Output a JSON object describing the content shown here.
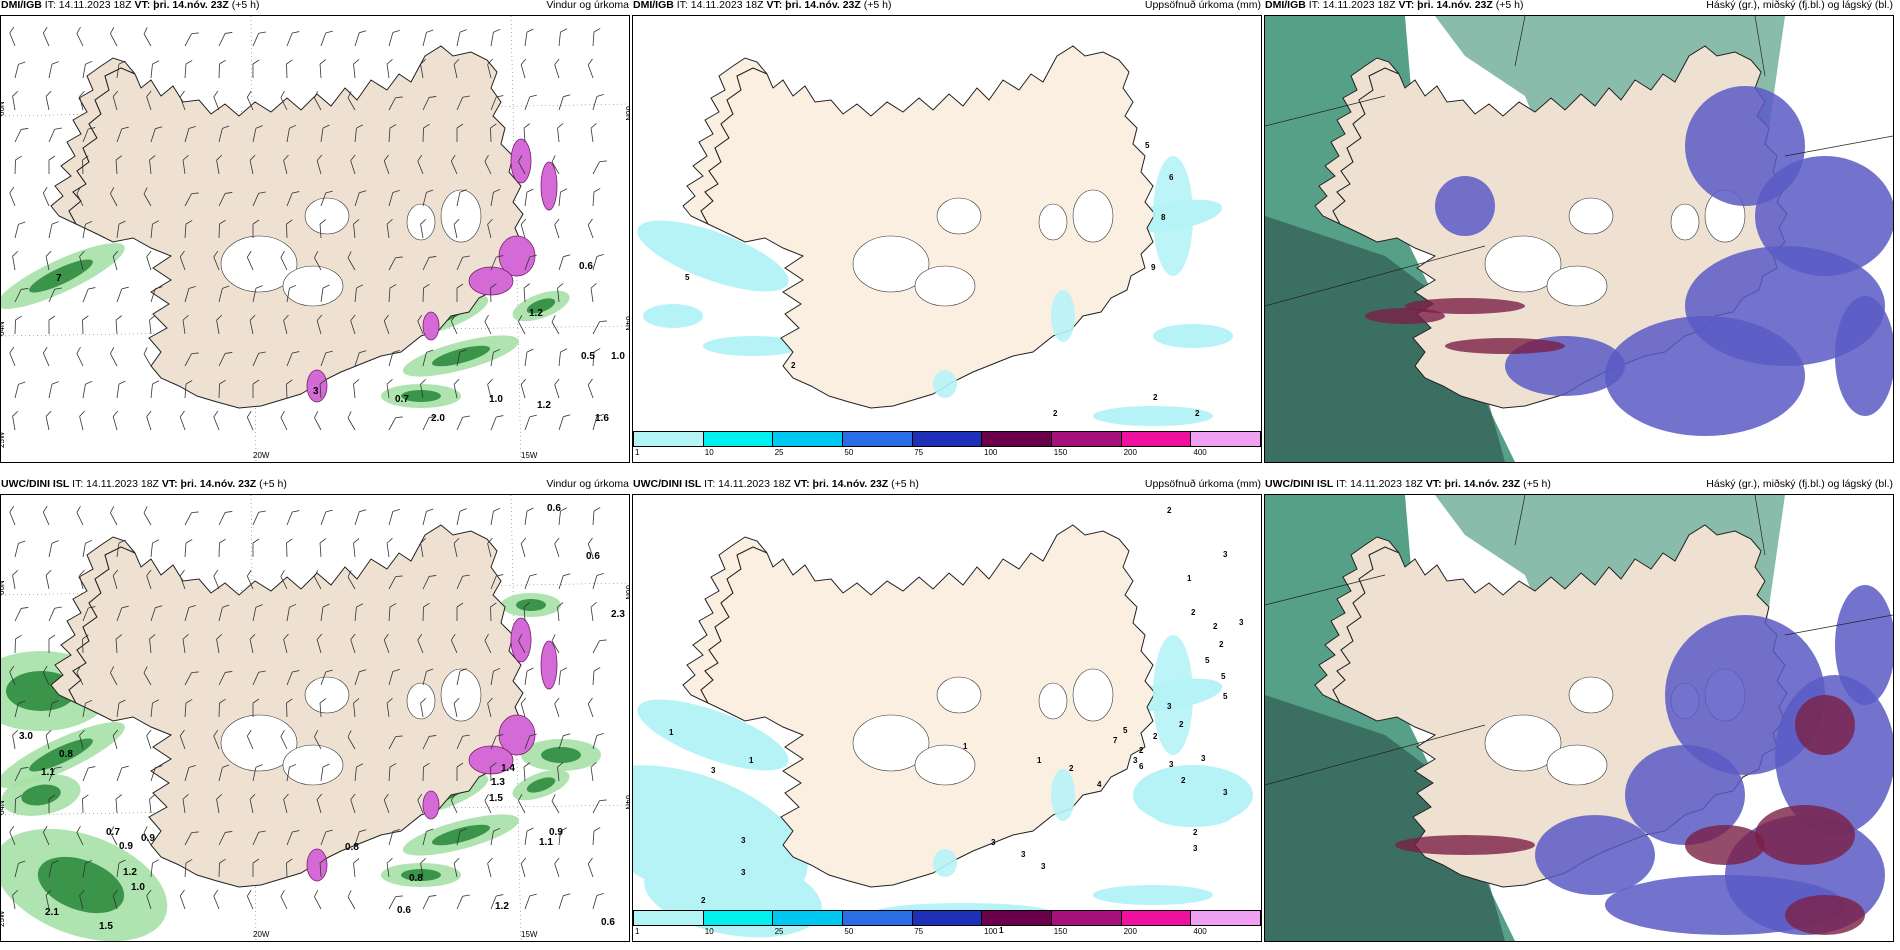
{
  "panels": [
    {
      "model": "DMI/IGB",
      "it": "IT: 14.11.2023 18Z",
      "vt": "VT: þri. 14.nóv. 23Z",
      "lead": "(+5 h)",
      "title": "Vindur og úrkoma",
      "labels": [
        "7",
        "0.6",
        "1.2",
        "0.5",
        "1.0",
        "0.7",
        "1.0",
        "1.2",
        "2.0",
        "1.6",
        "3"
      ],
      "axis": {
        "lat": "66N",
        "lat2": "64N",
        "lat3": "25W",
        "lon1": "20W",
        "lon2": "15W",
        "lat_r": "66N",
        "lat_r2": "64N"
      }
    },
    {
      "model": "DMI/IGB",
      "it": "IT: 14.11.2023 18Z",
      "vt": "VT: þri. 14.nóv. 23Z",
      "lead": "(+5 h)",
      "title": "Uppsöfnuð úrkoma (mm)",
      "labels": [
        "5",
        "6",
        "8",
        "9",
        "5",
        "2",
        "2",
        "2",
        "2"
      ],
      "legend": [
        "1",
        "10",
        "25",
        "50",
        "75",
        "100",
        "150",
        "200",
        "400"
      ]
    },
    {
      "model": "DMI/IGB",
      "it": "IT: 14.11.2023 18Z",
      "vt": "VT: þri. 14.nóv. 23Z",
      "lead": "(+5 h)",
      "title": "Háský (gr.), miðský (fj.bl.) og lágský (bl.)"
    },
    {
      "model": "UWC/DINI ISL",
      "it": "IT: 14.11.2023 18Z",
      "vt": "VT: þri. 14.nóv. 23Z",
      "lead": "(+5 h)",
      "title": "Vindur og úrkoma",
      "labels": [
        "0.6",
        "0.6",
        "2.3",
        "3.0",
        "0.8",
        "1.1",
        "0.7",
        "0.9",
        "0.9",
        "1.2",
        "1.0",
        "2.1",
        "1.5",
        "0.8",
        "0.8",
        "0.6",
        "1.2",
        "0.9",
        "1.1",
        "0.6",
        "1.3",
        "1.4",
        "1.5"
      ],
      "axis": {
        "lat": "66N",
        "lat2": "64N",
        "lat3": "25W",
        "lon1": "20W",
        "lon2": "15W",
        "lat_r": "66N",
        "lat_r2": "64N"
      }
    },
    {
      "model": "UWC/DINI ISL",
      "it": "IT: 14.11.2023 18Z",
      "vt": "VT: þri. 14.nóv. 23Z",
      "lead": "(+5 h)",
      "title": "Uppsöfnuð úrkoma (mm)",
      "labels": [
        "2",
        "3",
        "1",
        "2",
        "3",
        "2",
        "2",
        "5",
        "5",
        "5",
        "3",
        "2",
        "2",
        "6",
        "5",
        "7",
        "3",
        "3",
        "2",
        "3",
        "4",
        "2",
        "3",
        "1",
        "1",
        "2",
        "3",
        "3",
        "3",
        "2",
        "3",
        "1",
        "1",
        "3",
        "3",
        "3",
        "2",
        "3",
        "1",
        "1"
      ],
      "legend": [
        "1",
        "10",
        "25",
        "50",
        "75",
        "100",
        "150",
        "200",
        "400"
      ]
    },
    {
      "model": "UWC/DINI ISL",
      "it": "IT: 14.11.2023 18Z",
      "vt": "VT: þri. 14.nóv. 23Z",
      "lead": "(+5 h)",
      "title": "Háský (gr.), miðský (fj.bl.) og lágský (bl.)"
    }
  ],
  "colors": {
    "land": "#efe1d2",
    "land_light": "#fbefe2",
    "precip_green": "#2e8b3e",
    "precip_light": "#a6e0a6",
    "precip_magenta": "#d46ad6",
    "cyan": "#b6f3f6",
    "high_cloud": "#3a8f73",
    "mid_cloud": "#5a5ac6",
    "low_cloud": "#7a1f45",
    "legend": [
      "#b3f4f5",
      "#00f0f0",
      "#00c8f0",
      "#2b6de6",
      "#1e2fb8",
      "#6a004a",
      "#a6107a",
      "#f010a0",
      "#f0a0f0"
    ]
  }
}
